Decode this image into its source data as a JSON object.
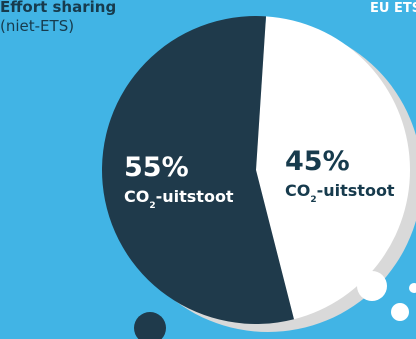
{
  "labels": {
    "left_title": "Effort sharing",
    "left_subtitle": "(niet-ETS)",
    "right_title": "EU ETS"
  },
  "chart_data": {
    "type": "pie",
    "title": "",
    "slices": [
      {
        "name": "Effort sharing (niet-ETS)",
        "value": 55,
        "value_label": "55%",
        "label_main": "CO",
        "label_sub": "2",
        "label_rest": "-uitstoot",
        "color": "#1f3a4b",
        "text_color": "#ffffff"
      },
      {
        "name": "EU ETS",
        "value": 45,
        "value_label": "45%",
        "label_main": "CO",
        "label_sub": "2",
        "label_rest": "-uitstoot",
        "color": "#ffffff",
        "text_color": "#173b4d"
      }
    ]
  },
  "colors": {
    "background": "#41b4e5",
    "shadow": "#d9d9d9",
    "dark": "#1f3a4b",
    "light": "#ffffff"
  }
}
